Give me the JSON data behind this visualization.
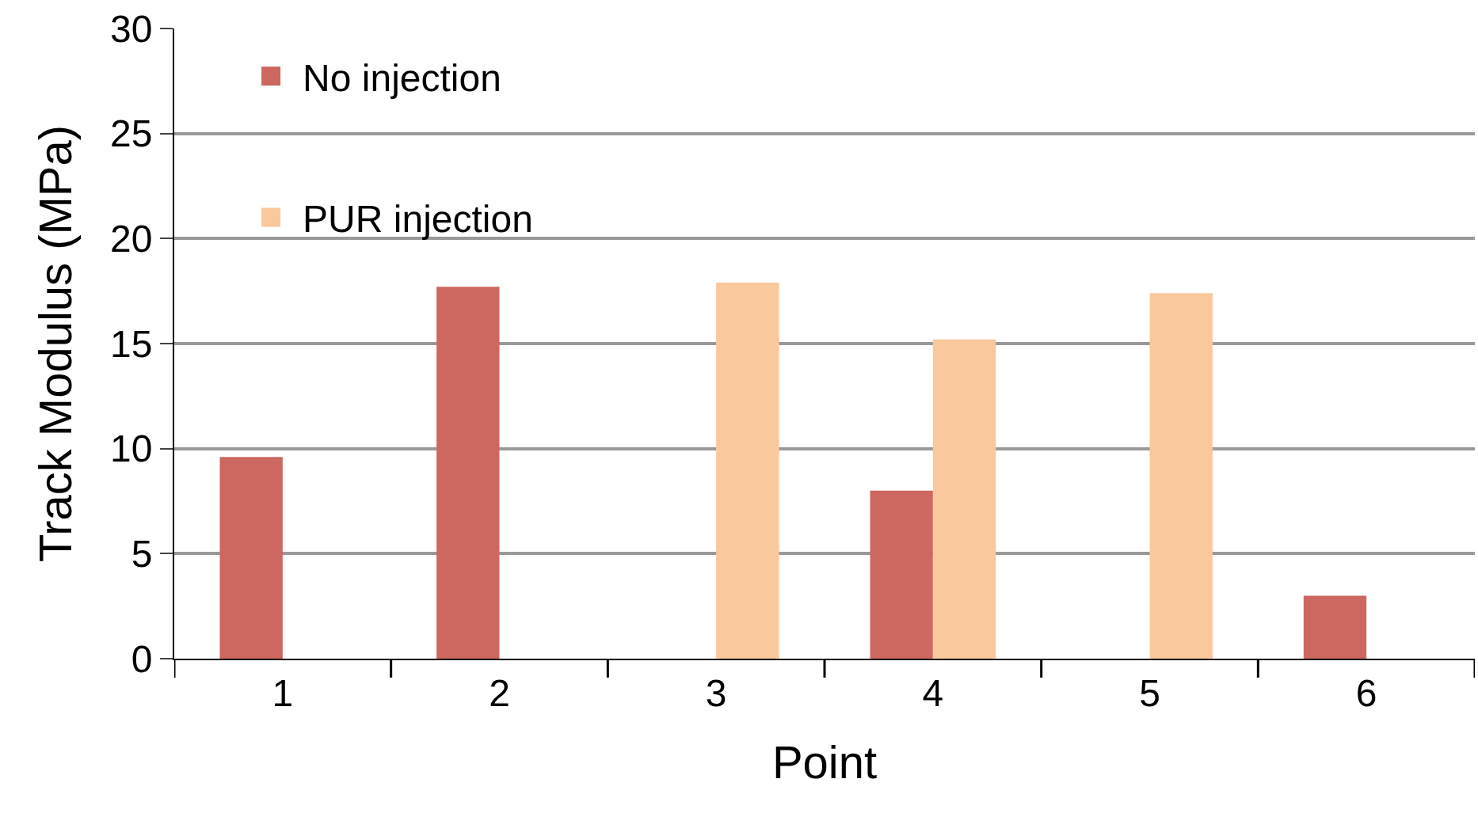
{
  "chart_data": {
    "type": "bar",
    "xlabel": "Point",
    "ylabel": "Track Modulus (MPa)",
    "categories": [
      "1",
      "2",
      "3",
      "4",
      "5",
      "6"
    ],
    "series": [
      {
        "name": "No injection",
        "color": "#cd6860",
        "values": [
          9.6,
          17.7,
          null,
          8.0,
          null,
          3.0
        ]
      },
      {
        "name": "PUR injection",
        "color": "#f9c89c",
        "values": [
          null,
          null,
          17.9,
          15.2,
          17.4,
          null
        ]
      }
    ],
    "ylim": [
      0,
      30
    ],
    "yticks": [
      0,
      5,
      10,
      15,
      20,
      25,
      30
    ],
    "grid": "y",
    "legend": "top left"
  }
}
